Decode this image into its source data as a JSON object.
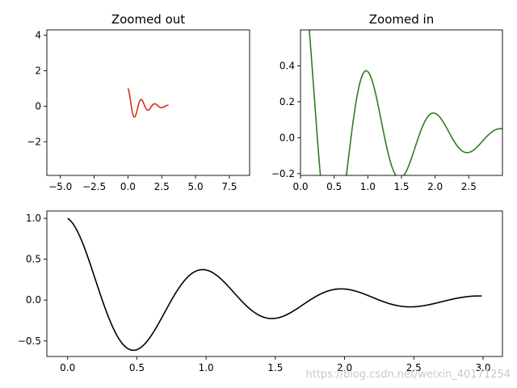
{
  "chart_data": [
    {
      "id": "zoomed-out",
      "type": "line",
      "title": "Zoomed out",
      "xlim": [
        -6.0,
        9.0
      ],
      "ylim": [
        -3.9,
        4.3
      ],
      "xticks": [
        -5.0,
        -2.5,
        0.0,
        2.5,
        5.0,
        7.5
      ],
      "xtick_labels": [
        "−5.0",
        "−2.5",
        "0.0",
        "2.5",
        "5.0",
        "7.5"
      ],
      "yticks": [
        -2,
        0,
        2,
        4
      ],
      "ytick_labels": [
        "−2",
        "0",
        "2",
        "4"
      ],
      "grid": false,
      "series": [
        {
          "color": "#d62d20",
          "function": "exp(-x)*cos(2*pi*x)",
          "x_range": [
            0.0,
            3.0
          ],
          "step": 0.01
        }
      ]
    },
    {
      "id": "zoomed-in",
      "type": "line",
      "title": "Zoomed in",
      "xlim": [
        0.0,
        3.0
      ],
      "ylim": [
        -0.21,
        0.6
      ],
      "xticks": [
        0.0,
        0.5,
        1.0,
        1.5,
        2.0,
        2.5
      ],
      "xtick_labels": [
        "0.0",
        "0.5",
        "1.0",
        "1.5",
        "2.0",
        "2.5"
      ],
      "yticks": [
        -0.2,
        0.0,
        0.2,
        0.4
      ],
      "ytick_labels": [
        "−0.2",
        "0.0",
        "0.2",
        "0.4"
      ],
      "grid": false,
      "series": [
        {
          "color": "#2e7d1f",
          "function": "exp(-x)*cos(2*pi*x)",
          "x_range": [
            0.0,
            3.0
          ],
          "step": 0.01
        }
      ]
    },
    {
      "id": "full",
      "type": "line",
      "title": "",
      "xlim": [
        -0.15,
        3.14
      ],
      "ylim": [
        -0.69,
        1.09
      ],
      "xticks": [
        0.0,
        0.5,
        1.0,
        1.5,
        2.0,
        2.5,
        3.0
      ],
      "xtick_labels": [
        "0.0",
        "0.5",
        "1.0",
        "1.5",
        "2.0",
        "2.5",
        "3.0"
      ],
      "yticks": [
        -0.5,
        0.0,
        0.5,
        1.0
      ],
      "ytick_labels": [
        "−0.5",
        "0.0",
        "0.5",
        "1.0"
      ],
      "grid": false,
      "series": [
        {
          "color": "#000000",
          "function": "exp(-x)*cos(2*pi*x)",
          "x_range": [
            0.0,
            2.99
          ],
          "step": 0.01
        }
      ]
    }
  ],
  "watermark": "https://blog.csdn.net/weixin_40171254"
}
